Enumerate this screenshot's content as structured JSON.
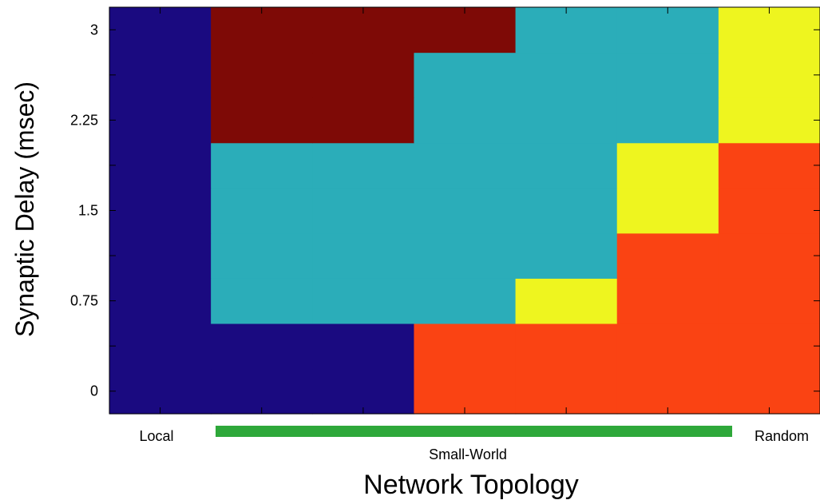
{
  "chart_data": {
    "type": "heatmap",
    "title": "",
    "xlabel": "Network Topology",
    "ylabel": "Synaptic Delay (msec)",
    "x_categories": [
      "Local",
      "",
      "",
      "",
      "",
      "",
      "Random"
    ],
    "x_annotations": {
      "left": "Local",
      "middle": "Small-World",
      "right": "Random",
      "bar_color": "#2ea83a"
    },
    "y_categories": [
      "0",
      "0.375",
      "0.75",
      "1.125",
      "1.5",
      "1.875",
      "2.25",
      "2.625",
      "3"
    ],
    "y_tick_labels": [
      "0",
      "0.75",
      "1.5",
      "2.25",
      "3"
    ],
    "class_colors": {
      "1": "#1a0a80",
      "2": "#2badb9",
      "3": "#eef51f",
      "4": "#fa4313",
      "5": "#7e0a06"
    },
    "cells": [
      [
        1,
        1,
        1,
        4,
        4,
        4,
        4
      ],
      [
        1,
        1,
        1,
        4,
        4,
        4,
        4
      ],
      [
        1,
        2,
        2,
        2,
        3,
        4,
        4
      ],
      [
        1,
        2,
        2,
        2,
        2,
        4,
        4
      ],
      [
        1,
        2,
        2,
        2,
        2,
        3,
        4
      ],
      [
        1,
        2,
        2,
        2,
        2,
        3,
        4
      ],
      [
        1,
        5,
        5,
        2,
        2,
        2,
        3
      ],
      [
        1,
        5,
        5,
        2,
        2,
        2,
        3
      ],
      [
        1,
        5,
        5,
        5,
        2,
        2,
        3
      ]
    ],
    "grid": false
  }
}
